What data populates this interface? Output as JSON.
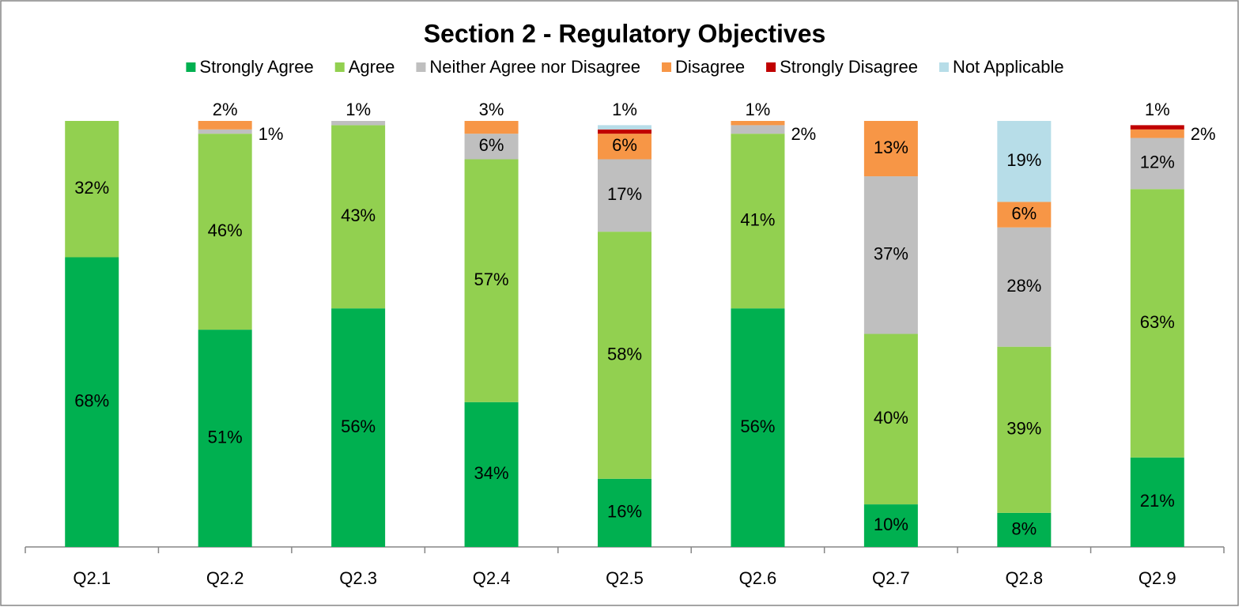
{
  "chart_data": {
    "type": "stacked_bar",
    "title": "Section 2 - Regulatory Objectives",
    "categories": [
      "Q2.1",
      "Q2.2",
      "Q2.3",
      "Q2.4",
      "Q2.5",
      "Q2.6",
      "Q2.7",
      "Q2.8",
      "Q2.9"
    ],
    "ylim": [
      0,
      100
    ],
    "legend": "top",
    "series": [
      {
        "name": "Strongly Agree",
        "color": "#00b050",
        "values": [
          68,
          51,
          56,
          34,
          16,
          56,
          10,
          8,
          21
        ],
        "value_labels": [
          "68%",
          "51%",
          "56%",
          "34%",
          "16%",
          "56%",
          "10%",
          "8%",
          "21%"
        ]
      },
      {
        "name": "Agree",
        "color": "#92d050",
        "values": [
          32,
          46,
          43,
          57,
          58,
          41,
          40,
          39,
          63
        ],
        "value_labels": [
          "32%",
          "46%",
          "43%",
          "57%",
          "58%",
          "41%",
          "40%",
          "39%",
          "63%"
        ]
      },
      {
        "name": "Neither Agree nor Disagree",
        "color": "#bfbfbf",
        "values": [
          0,
          1,
          1,
          6,
          17,
          2,
          37,
          28,
          12
        ],
        "value_labels": [
          null,
          "1%",
          "1%",
          "6%",
          "17%",
          "2%",
          "37%",
          "28%",
          "12%"
        ]
      },
      {
        "name": "Disagree",
        "color": "#f79646",
        "values": [
          0,
          2,
          0,
          3,
          6,
          1,
          13,
          6,
          2
        ],
        "value_labels": [
          null,
          "2%",
          null,
          "3%",
          "6%",
          "1%",
          "13%",
          "6%",
          "2%"
        ]
      },
      {
        "name": "Strongly Disagree",
        "color": "#c00000",
        "values": [
          0,
          0,
          0,
          0,
          1,
          0,
          0,
          0,
          1
        ],
        "value_labels": [
          null,
          null,
          null,
          null,
          null,
          null,
          null,
          null,
          "1%"
        ]
      },
      {
        "name": "Not Applicable",
        "color": "#b7dde8",
        "values": [
          0,
          0,
          0,
          0,
          1,
          0,
          0,
          19,
          0
        ],
        "value_labels": [
          null,
          null,
          null,
          null,
          "1%",
          null,
          null,
          "19%",
          null
        ]
      }
    ]
  }
}
